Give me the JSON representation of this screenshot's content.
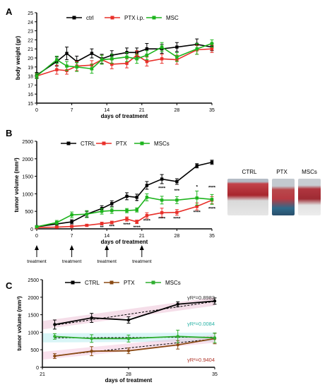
{
  "panels": {
    "A": "A",
    "B": "B",
    "C": "C"
  },
  "colors": {
    "ctrl": "#000000",
    "ptx": "#e8302a",
    "msc": "#1db41d",
    "ptx_c": "#8a4a14",
    "msc_c": "#2fae2f",
    "ci_ctrl": "#e8b5cf",
    "ci_msc": "#a9e9ea",
    "ci_ptx": "#f1bcd8",
    "r2_ctrl": "#333333",
    "r2_msc": "#2bb3a6",
    "r2_ptx": "#b0352a"
  },
  "chart_data": [
    {
      "panel": "A",
      "type": "line",
      "title": "",
      "xlabel": "days of treatment",
      "ylabel": "body weight (gr)",
      "xlim": [
        0,
        35
      ],
      "ylim": [
        15,
        25
      ],
      "xticks": [
        0,
        7,
        14,
        21,
        28,
        35
      ],
      "yticks": [
        15,
        16,
        17,
        18,
        19,
        20,
        21,
        22,
        23,
        24,
        25
      ],
      "legend_position": "top",
      "series": [
        {
          "name": "ctrl",
          "x": [
            0,
            4,
            6,
            8,
            11,
            13,
            15,
            18,
            20,
            22,
            25,
            28,
            32,
            35
          ],
          "y": [
            18.1,
            19.6,
            20.5,
            19.6,
            20.5,
            19.9,
            20.3,
            20.6,
            20.6,
            21.0,
            21.0,
            21.2,
            21.5,
            21.2
          ],
          "err": [
            0.3,
            0.5,
            0.7,
            0.6,
            0.5,
            0.5,
            0.5,
            0.5,
            0.5,
            0.6,
            0.5,
            0.5,
            0.6,
            0.4
          ]
        },
        {
          "name": "PTX i.p.",
          "x": [
            0,
            4,
            6,
            8,
            11,
            13,
            15,
            18,
            20,
            22,
            25,
            28,
            32,
            35
          ],
          "y": [
            18.0,
            18.7,
            18.6,
            19.1,
            19.2,
            19.8,
            19.3,
            19.4,
            20.3,
            19.6,
            19.9,
            19.8,
            20.9,
            21.0
          ],
          "err": [
            0.3,
            0.5,
            0.4,
            0.5,
            0.5,
            0.5,
            0.5,
            0.5,
            0.5,
            0.5,
            0.5,
            0.5,
            0.5,
            0.4
          ]
        },
        {
          "name": "MSC",
          "x": [
            0,
            4,
            6,
            8,
            11,
            13,
            15,
            18,
            20,
            22,
            25,
            28,
            32,
            35
          ],
          "y": [
            18.0,
            19.8,
            19.1,
            19.0,
            18.8,
            19.8,
            19.9,
            20.1,
            19.9,
            20.3,
            21.2,
            20.1,
            21.0,
            21.6
          ],
          "err": [
            0.3,
            0.4,
            0.5,
            0.5,
            0.5,
            0.5,
            0.5,
            0.5,
            0.5,
            0.5,
            0.5,
            0.5,
            0.6,
            0.4
          ]
        }
      ]
    },
    {
      "panel": "B",
      "type": "line",
      "title": "",
      "xlabel": "days of treatment",
      "ylabel": "tumor volume (mm³)",
      "xlim": [
        0,
        35
      ],
      "ylim": [
        0,
        2500
      ],
      "xticks": [
        0,
        7,
        14,
        21,
        28,
        35
      ],
      "yticks": [
        0,
        500,
        1000,
        1500,
        2000,
        2500
      ],
      "legend_position": "top",
      "series": [
        {
          "name": "CTRL",
          "x": [
            0,
            4,
            7,
            10,
            13,
            15,
            18,
            20,
            22,
            25,
            28,
            32,
            35
          ],
          "y": [
            60,
            140,
            200,
            420,
            580,
            720,
            930,
            900,
            1240,
            1420,
            1350,
            1800,
            1900
          ],
          "err": [
            20,
            60,
            60,
            80,
            80,
            80,
            100,
            90,
            110,
            130,
            80,
            60,
            60
          ]
        },
        {
          "name": "PTX",
          "x": [
            0,
            4,
            7,
            10,
            13,
            15,
            18,
            20,
            22,
            25,
            28,
            32,
            35
          ],
          "y": [
            40,
            50,
            70,
            100,
            150,
            180,
            280,
            200,
            380,
            460,
            470,
            640,
            820
          ],
          "err": [
            10,
            20,
            20,
            30,
            40,
            40,
            60,
            50,
            80,
            130,
            80,
            100,
            100
          ]
        },
        {
          "name": "MSCs",
          "x": [
            0,
            4,
            7,
            10,
            13,
            15,
            18,
            20,
            22,
            25,
            28,
            32,
            35
          ],
          "y": [
            60,
            180,
            400,
            420,
            500,
            520,
            520,
            540,
            900,
            820,
            820,
            880,
            840
          ],
          "err": [
            20,
            60,
            80,
            100,
            80,
            80,
            60,
            60,
            100,
            110,
            100,
            200,
            140
          ]
        }
      ],
      "annotations": [
        {
          "text": "*",
          "x": 20,
          "y": 750
        },
        {
          "text": "****",
          "x": 25,
          "y": 1120
        },
        {
          "text": "***",
          "x": 28,
          "y": 1050
        },
        {
          "text": "*",
          "x": 32,
          "y": 1160
        },
        {
          "text": "****",
          "x": 35,
          "y": 1140
        },
        {
          "text": "**",
          "x": 13,
          "y": 5
        },
        {
          "text": "***",
          "x": 15,
          "y": 30
        },
        {
          "text": "****",
          "x": 18,
          "y": 80
        },
        {
          "text": "****",
          "x": 20,
          "y": 5
        },
        {
          "text": "****",
          "x": 22,
          "y": 190
        },
        {
          "text": "****",
          "x": 25,
          "y": 250
        },
        {
          "text": "****",
          "x": 28,
          "y": 250
        },
        {
          "text": "****",
          "x": 32,
          "y": 430
        },
        {
          "text": "****",
          "x": 35,
          "y": 530
        }
      ],
      "treatment_label": "treatment",
      "treatment_days": [
        0,
        7,
        14,
        21
      ]
    },
    {
      "panel": "C",
      "type": "line",
      "title": "",
      "xlabel": "days of treatment",
      "ylabel": "tumor volume (mm³)",
      "xlim": [
        21,
        35
      ],
      "ylim": [
        0,
        2500
      ],
      "xticks": [
        21,
        28,
        35
      ],
      "yticks": [
        0,
        500,
        1000,
        1500,
        2000,
        2500
      ],
      "legend_position": "top",
      "series": [
        {
          "name": "CTRL",
          "x": [
            22,
            25,
            28,
            32,
            35
          ],
          "y": [
            1220,
            1410,
            1350,
            1800,
            1890
          ],
          "err": [
            130,
            130,
            90,
            70,
            90
          ],
          "fit": [
            1200,
            1880
          ],
          "r2": "γR²=0.8982"
        },
        {
          "name": "PTX",
          "x": [
            22,
            25,
            28,
            32,
            35
          ],
          "y": [
            320,
            460,
            470,
            640,
            820
          ],
          "err": [
            70,
            130,
            80,
            120,
            150
          ],
          "fit": [
            330,
            810
          ],
          "r2": "γR²=0.9404"
        },
        {
          "name": "MSCs",
          "x": [
            22,
            25,
            28,
            32,
            35
          ],
          "y": [
            880,
            820,
            820,
            880,
            840
          ],
          "err": [
            80,
            110,
            100,
            180,
            140
          ],
          "fit": [
            840,
            860
          ],
          "r2": "γR²=0.0084"
        }
      ]
    }
  ],
  "photos": {
    "labels": [
      "CTRL",
      "PTX",
      "MSCs"
    ]
  }
}
